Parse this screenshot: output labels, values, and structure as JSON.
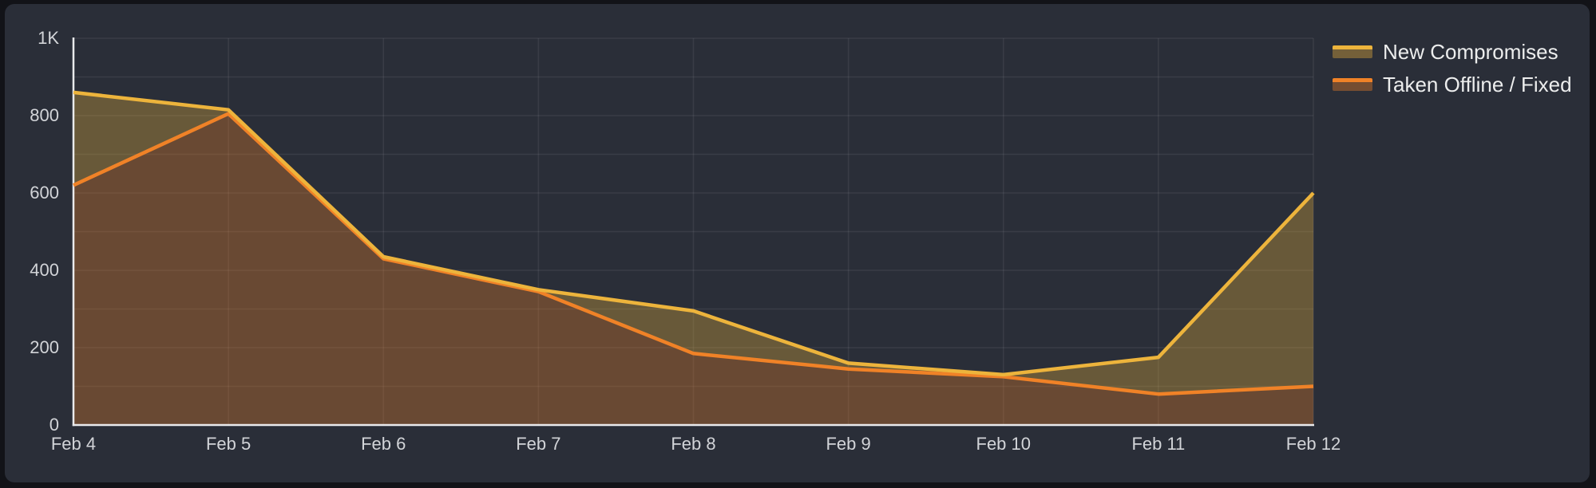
{
  "panel": {
    "title": "",
    "background": "#2a2e38",
    "outer_background": "#121318"
  },
  "colors": {
    "grid": "rgba(255,255,255,0.07)",
    "axis": "#e9eaec",
    "tick_text": "#d2d4d8",
    "legend_text": "#eceded"
  },
  "chart_data": {
    "type": "area",
    "title": "",
    "xlabel": "",
    "ylabel": "",
    "x": [
      "Feb 4",
      "Feb 5",
      "Feb 6",
      "Feb 7",
      "Feb 8",
      "Feb 9",
      "Feb 10",
      "Feb 11",
      "Feb 12"
    ],
    "series": [
      {
        "name": "New Compromises",
        "color": "#EDB43C",
        "values": [
          860,
          815,
          435,
          350,
          295,
          160,
          130,
          175,
          600
        ],
        "fill_mode": "band-down-to-next-series"
      },
      {
        "name": "Taken Offline / Fixed",
        "color": "#F08227",
        "values": [
          620,
          805,
          430,
          345,
          185,
          145,
          125,
          80,
          100
        ],
        "fill_mode": "to-zero"
      }
    ],
    "ylim": [
      0,
      1000
    ],
    "y_ticks": [
      {
        "value": 0,
        "label": "0"
      },
      {
        "value": 200,
        "label": "200"
      },
      {
        "value": 400,
        "label": "400"
      },
      {
        "value": 600,
        "label": "600"
      },
      {
        "value": 800,
        "label": "800"
      },
      {
        "value": 1000,
        "label": "1K"
      }
    ],
    "y_minor_grid_step": 100,
    "grid": true,
    "legend_position": "top-right",
    "fill_opacity": 0.32,
    "line_width": 4.5
  }
}
